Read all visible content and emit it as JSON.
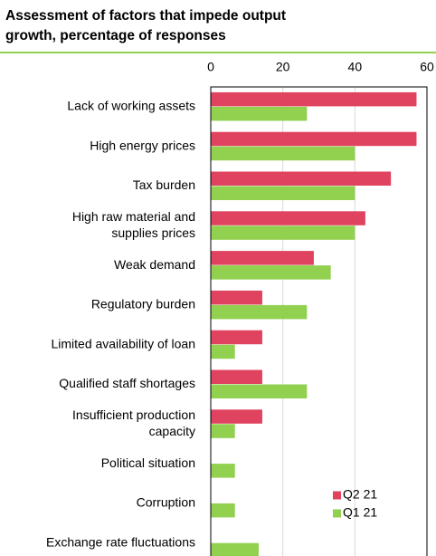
{
  "chart_data": {
    "type": "bar",
    "orientation": "horizontal",
    "title": [
      "Assessment of factors that impede output",
      "growth, percentage of responses"
    ],
    "categories": [
      [
        "Lack of working assets"
      ],
      [
        "High energy prices"
      ],
      [
        "Tax burden"
      ],
      [
        "High raw material and",
        "supplies prices"
      ],
      [
        "Weak demand"
      ],
      [
        "Regulatory burden"
      ],
      [
        "Limited availability of loan"
      ],
      [
        "Qualified staff shortages"
      ],
      [
        "Insufficient production",
        "capacity"
      ],
      [
        "Political situation"
      ],
      [
        "Corruption"
      ],
      [
        "Exchange rate fluctuations"
      ]
    ],
    "series": [
      {
        "name": "Q2 21",
        "color": "#e0435f",
        "values": [
          57.1,
          57.1,
          50,
          42.9,
          28.6,
          14.3,
          14.3,
          14.3,
          14.3,
          0,
          0,
          0
        ]
      },
      {
        "name": "Q1 21",
        "color": "#92d050",
        "values": [
          26.7,
          40,
          40,
          40,
          33.3,
          26.7,
          6.7,
          26.7,
          6.7,
          6.7,
          6.7,
          13.3
        ]
      }
    ],
    "xlim": [
      0,
      60
    ],
    "xticks": [
      0,
      20,
      40,
      60
    ],
    "grid": true,
    "legend": "lower right"
  }
}
